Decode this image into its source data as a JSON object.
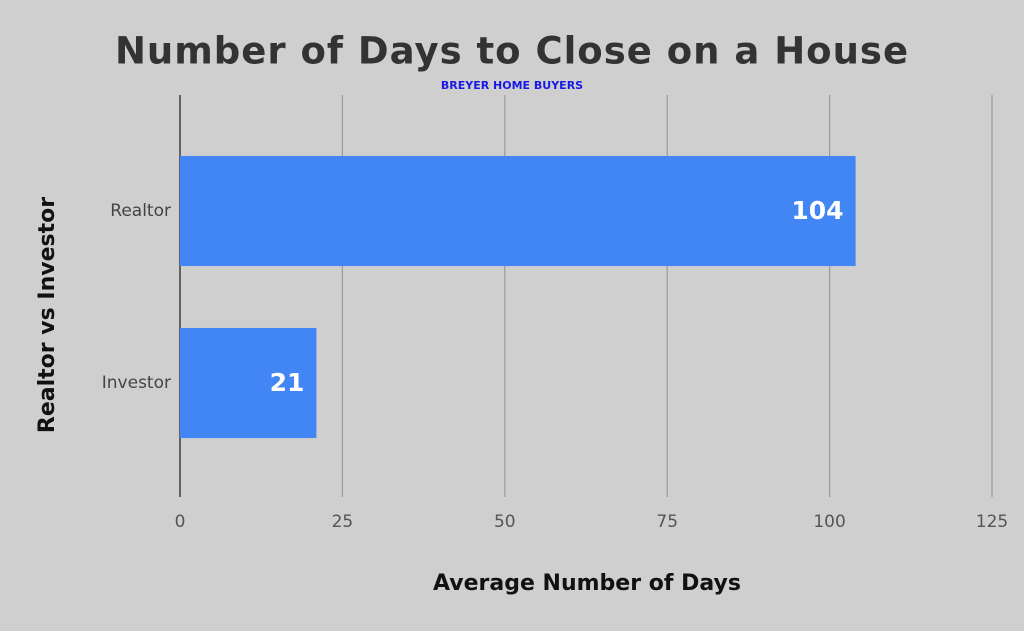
{
  "chart_data": {
    "type": "bar",
    "orientation": "horizontal",
    "title": "Number of Days to Close on a House",
    "subtitle": "BREYER HOME BUYERS",
    "x_label": "Average Number of Days",
    "y_label": "Realtor vs Investor",
    "categories": [
      "Realtor",
      "Investor"
    ],
    "values": [
      104,
      21
    ],
    "color": "#4285f4",
    "xlim": [
      0,
      125
    ],
    "xticks": [
      0,
      25,
      50,
      75,
      100,
      125
    ],
    "grid": true
  }
}
